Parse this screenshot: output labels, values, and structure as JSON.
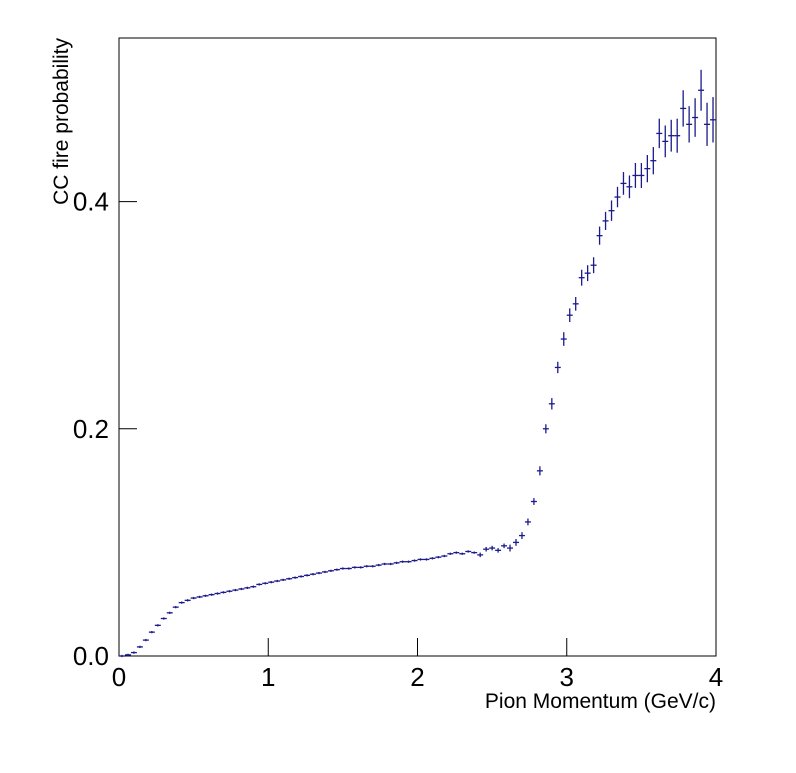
{
  "chart_data": {
    "type": "errorbar",
    "xlabel": "Pion Momentum (GeV/c)",
    "ylabel": "CC fire probability",
    "color": "#1a1a8c",
    "xlim": [
      0,
      4
    ],
    "xticks": [
      0,
      1,
      2,
      3,
      4
    ],
    "ylim": [
      0,
      0.544
    ],
    "yticks": [
      {
        "value": 0,
        "label": "0.0"
      },
      0.2,
      0.4
    ],
    "x": [
      0.02,
      0.06,
      0.1,
      0.14,
      0.18,
      0.22,
      0.26,
      0.3,
      0.34,
      0.38,
      0.42,
      0.46,
      0.5,
      0.54,
      0.58,
      0.62,
      0.66,
      0.7,
      0.74,
      0.78,
      0.82,
      0.86,
      0.9,
      0.94,
      0.98,
      1.02,
      1.06,
      1.1,
      1.14,
      1.18,
      1.22,
      1.26,
      1.3,
      1.34,
      1.38,
      1.42,
      1.46,
      1.5,
      1.54,
      1.58,
      1.62,
      1.66,
      1.7,
      1.74,
      1.78,
      1.82,
      1.86,
      1.9,
      1.94,
      1.98,
      2.02,
      2.06,
      2.1,
      2.14,
      2.18,
      2.22,
      2.26,
      2.3,
      2.34,
      2.38,
      2.42,
      2.46,
      2.5,
      2.54,
      2.58,
      2.62,
      2.66,
      2.7,
      2.74,
      2.78,
      2.82,
      2.86,
      2.9,
      2.94,
      2.98,
      3.02,
      3.06,
      3.1,
      3.14,
      3.18,
      3.22,
      3.26,
      3.3,
      3.34,
      3.38,
      3.42,
      3.46,
      3.5,
      3.54,
      3.58,
      3.62,
      3.66,
      3.7,
      3.74,
      3.78,
      3.82,
      3.86,
      3.9,
      3.94,
      3.98
    ],
    "values": [
      0.0,
      0.001,
      0.003,
      0.008,
      0.014,
      0.021,
      0.027,
      0.033,
      0.038,
      0.043,
      0.047,
      0.049,
      0.051,
      0.052,
      0.053,
      0.054,
      0.055,
      0.056,
      0.057,
      0.058,
      0.059,
      0.06,
      0.061,
      0.063,
      0.064,
      0.065,
      0.066,
      0.067,
      0.068,
      0.069,
      0.07,
      0.071,
      0.072,
      0.073,
      0.074,
      0.075,
      0.076,
      0.077,
      0.077,
      0.078,
      0.078,
      0.079,
      0.079,
      0.08,
      0.081,
      0.081,
      0.082,
      0.083,
      0.083,
      0.084,
      0.085,
      0.085,
      0.086,
      0.087,
      0.088,
      0.09,
      0.091,
      0.09,
      0.092,
      0.091,
      0.089,
      0.094,
      0.095,
      0.093,
      0.097,
      0.095,
      0.1,
      0.106,
      0.118,
      0.136,
      0.163,
      0.2,
      0.222,
      0.254,
      0.279,
      0.3,
      0.31,
      0.333,
      0.337,
      0.344,
      0.37,
      0.383,
      0.392,
      0.404,
      0.416,
      0.413,
      0.423,
      0.423,
      0.429,
      0.436,
      0.46,
      0.453,
      0.458,
      0.458,
      0.482,
      0.468,
      0.474,
      0.498,
      0.468,
      0.472
    ],
    "errors": [
      0.001,
      0.001,
      0.001,
      0.001,
      0.001,
      0.001,
      0.001,
      0.001,
      0.001,
      0.001,
      0.001,
      0.001,
      0.001,
      0.001,
      0.001,
      0.001,
      0.001,
      0.001,
      0.001,
      0.001,
      0.001,
      0.001,
      0.001,
      0.001,
      0.001,
      0.001,
      0.001,
      0.001,
      0.001,
      0.001,
      0.001,
      0.001,
      0.001,
      0.001,
      0.001,
      0.001,
      0.001,
      0.001,
      0.001,
      0.001,
      0.001,
      0.001,
      0.001,
      0.001,
      0.001,
      0.001,
      0.001,
      0.001,
      0.001,
      0.001,
      0.001,
      0.001,
      0.001,
      0.001,
      0.001,
      0.001,
      0.001,
      0.001,
      0.001,
      0.001,
      0.002,
      0.002,
      0.002,
      0.002,
      0.002,
      0.003,
      0.003,
      0.003,
      0.003,
      0.003,
      0.004,
      0.004,
      0.005,
      0.005,
      0.006,
      0.006,
      0.006,
      0.007,
      0.007,
      0.007,
      0.008,
      0.008,
      0.009,
      0.009,
      0.01,
      0.01,
      0.011,
      0.011,
      0.012,
      0.012,
      0.013,
      0.014,
      0.014,
      0.015,
      0.016,
      0.016,
      0.017,
      0.018,
      0.019,
      0.02
    ]
  }
}
